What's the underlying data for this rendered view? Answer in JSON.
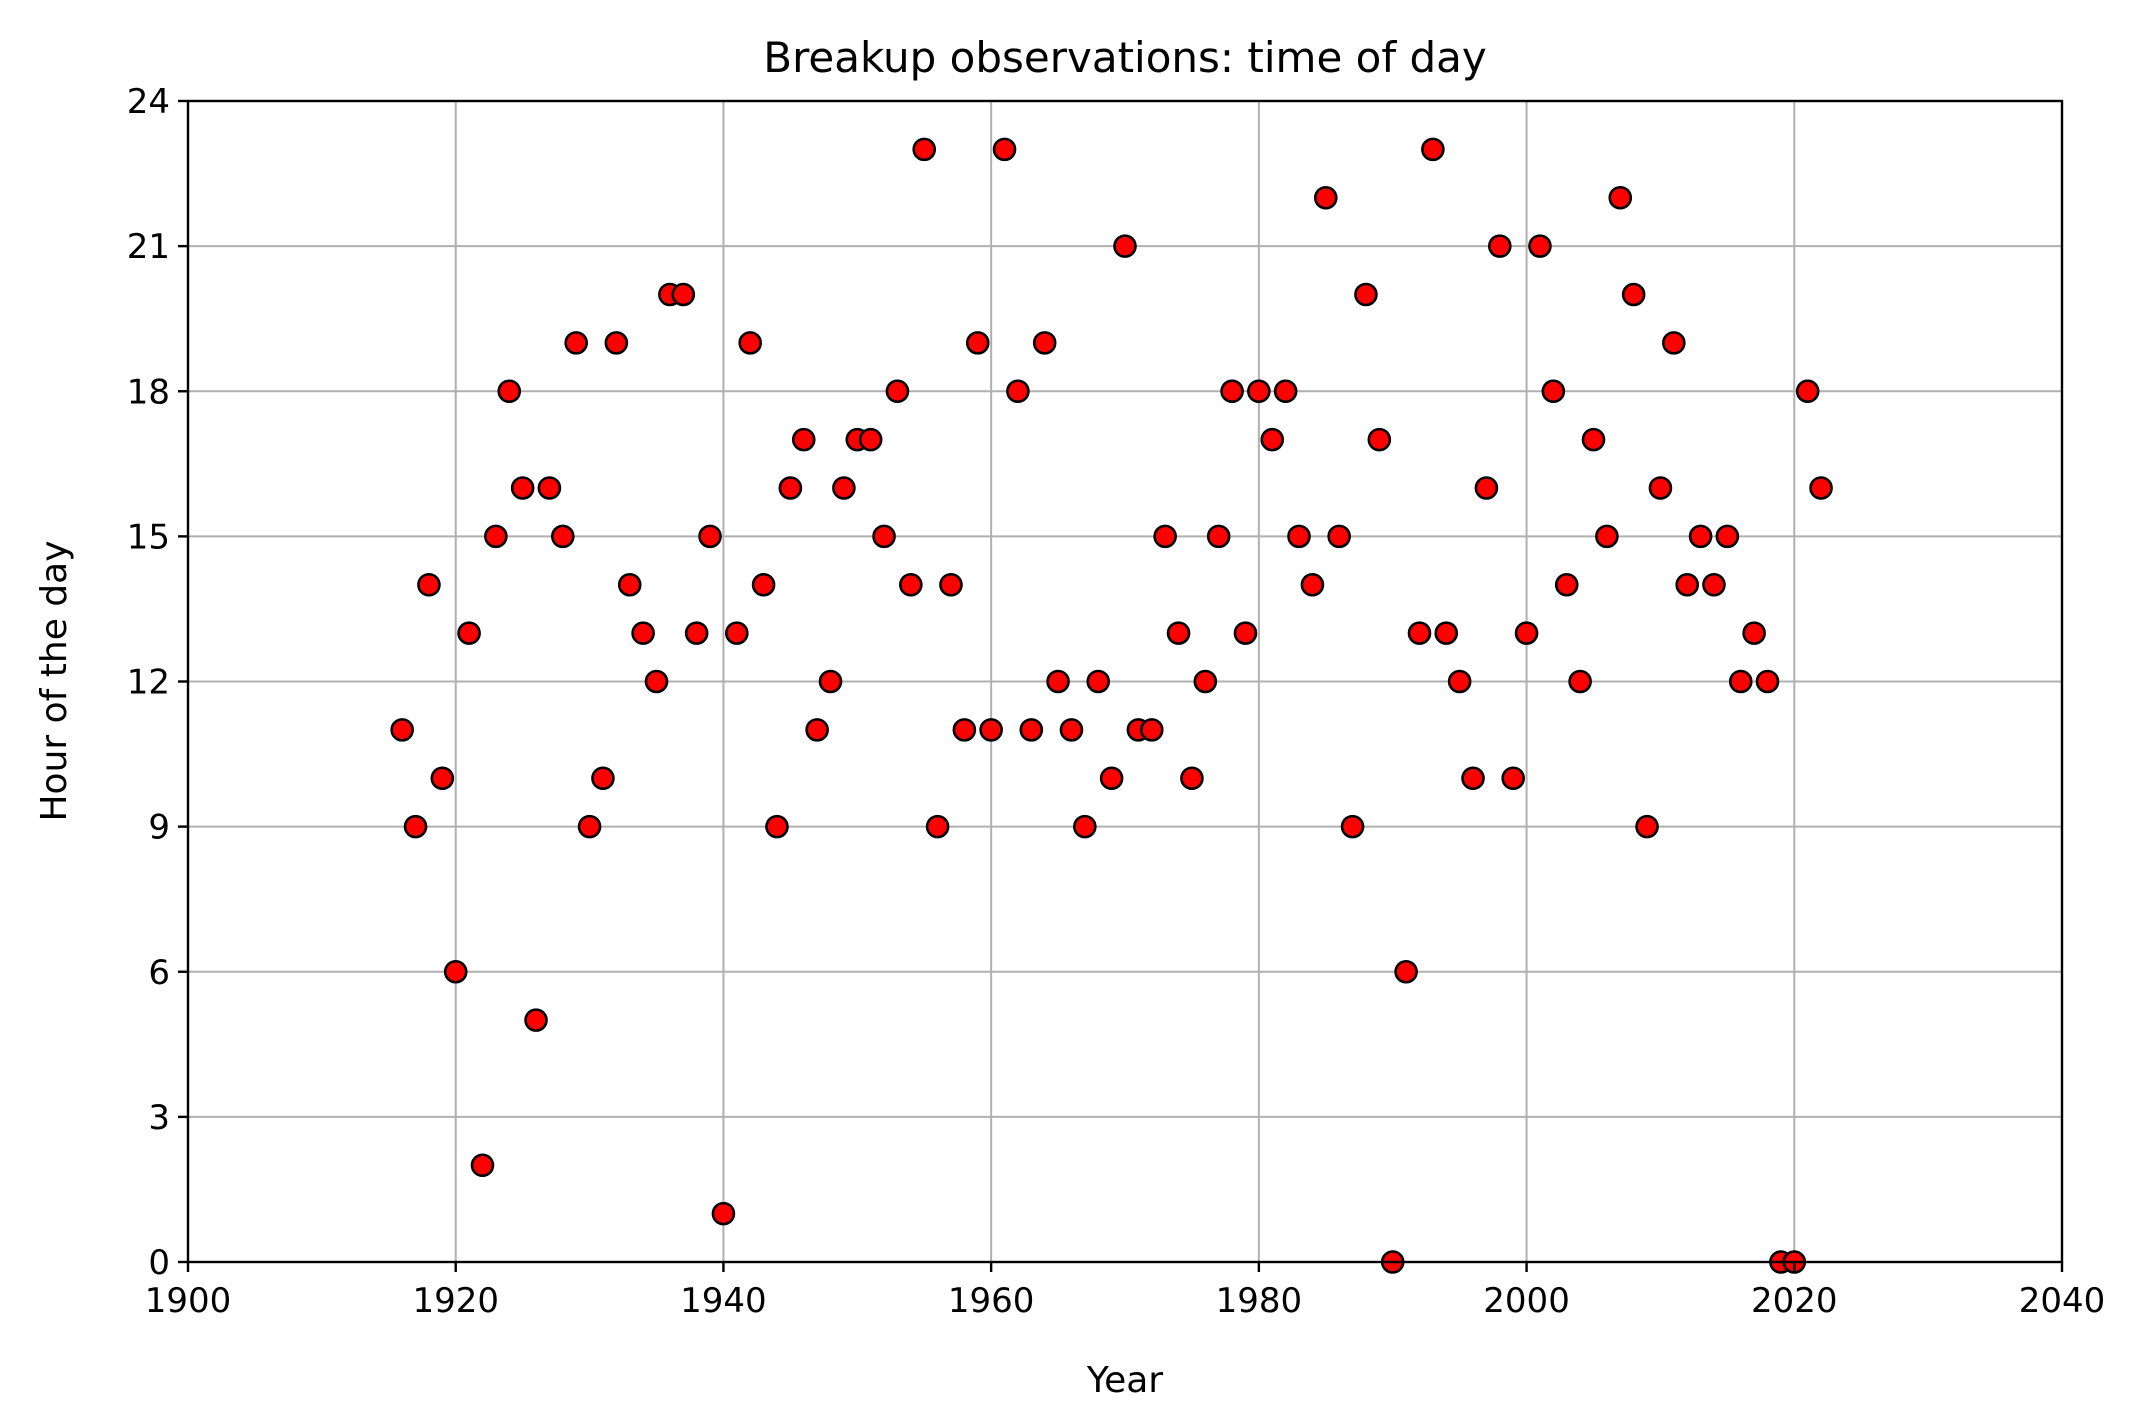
{
  "chart_data": {
    "type": "scatter",
    "title": "Breakup observations: time of day",
    "xlabel": "Year",
    "ylabel": "Hour of the day",
    "xlim": [
      1900,
      2040
    ],
    "ylim": [
      0,
      24
    ],
    "xticks": [
      1900,
      1920,
      1940,
      1960,
      1980,
      2000,
      2020,
      2040
    ],
    "yticks": [
      0,
      3,
      6,
      9,
      12,
      15,
      18,
      21,
      24
    ],
    "grid": true,
    "marker_color": "#ff0000",
    "marker_edge_color": "#000000",
    "points": [
      {
        "x": 1916,
        "y": 11
      },
      {
        "x": 1917,
        "y": 9
      },
      {
        "x": 1918,
        "y": 14
      },
      {
        "x": 1919,
        "y": 10
      },
      {
        "x": 1920,
        "y": 6
      },
      {
        "x": 1921,
        "y": 13
      },
      {
        "x": 1922,
        "y": 2
      },
      {
        "x": 1923,
        "y": 15
      },
      {
        "x": 1924,
        "y": 18
      },
      {
        "x": 1925,
        "y": 16
      },
      {
        "x": 1926,
        "y": 5
      },
      {
        "x": 1927,
        "y": 16
      },
      {
        "x": 1928,
        "y": 15
      },
      {
        "x": 1929,
        "y": 19
      },
      {
        "x": 1930,
        "y": 9
      },
      {
        "x": 1931,
        "y": 10
      },
      {
        "x": 1932,
        "y": 19
      },
      {
        "x": 1933,
        "y": 14
      },
      {
        "x": 1934,
        "y": 13
      },
      {
        "x": 1935,
        "y": 12
      },
      {
        "x": 1936,
        "y": 20
      },
      {
        "x": 1937,
        "y": 20
      },
      {
        "x": 1938,
        "y": 13
      },
      {
        "x": 1939,
        "y": 15
      },
      {
        "x": 1940,
        "y": 1
      },
      {
        "x": 1941,
        "y": 13
      },
      {
        "x": 1942,
        "y": 19
      },
      {
        "x": 1943,
        "y": 14
      },
      {
        "x": 1944,
        "y": 9
      },
      {
        "x": 1945,
        "y": 16
      },
      {
        "x": 1946,
        "y": 17
      },
      {
        "x": 1947,
        "y": 11
      },
      {
        "x": 1948,
        "y": 12
      },
      {
        "x": 1949,
        "y": 16
      },
      {
        "x": 1950,
        "y": 17
      },
      {
        "x": 1951,
        "y": 17
      },
      {
        "x": 1952,
        "y": 15
      },
      {
        "x": 1953,
        "y": 18
      },
      {
        "x": 1954,
        "y": 14
      },
      {
        "x": 1955,
        "y": 23
      },
      {
        "x": 1956,
        "y": 9
      },
      {
        "x": 1957,
        "y": 14
      },
      {
        "x": 1958,
        "y": 11
      },
      {
        "x": 1959,
        "y": 19
      },
      {
        "x": 1960,
        "y": 11
      },
      {
        "x": 1961,
        "y": 23
      },
      {
        "x": 1962,
        "y": 18
      },
      {
        "x": 1963,
        "y": 11
      },
      {
        "x": 1964,
        "y": 19
      },
      {
        "x": 1965,
        "y": 12
      },
      {
        "x": 1966,
        "y": 11
      },
      {
        "x": 1967,
        "y": 9
      },
      {
        "x": 1968,
        "y": 12
      },
      {
        "x": 1969,
        "y": 10
      },
      {
        "x": 1970,
        "y": 21
      },
      {
        "x": 1971,
        "y": 11
      },
      {
        "x": 1972,
        "y": 11
      },
      {
        "x": 1973,
        "y": 15
      },
      {
        "x": 1974,
        "y": 13
      },
      {
        "x": 1975,
        "y": 10
      },
      {
        "x": 1976,
        "y": 12
      },
      {
        "x": 1977,
        "y": 15
      },
      {
        "x": 1978,
        "y": 18
      },
      {
        "x": 1979,
        "y": 13
      },
      {
        "x": 1980,
        "y": 18
      },
      {
        "x": 1981,
        "y": 17
      },
      {
        "x": 1982,
        "y": 18
      },
      {
        "x": 1983,
        "y": 15
      },
      {
        "x": 1984,
        "y": 14
      },
      {
        "x": 1985,
        "y": 22
      },
      {
        "x": 1986,
        "y": 15
      },
      {
        "x": 1987,
        "y": 9
      },
      {
        "x": 1988,
        "y": 20
      },
      {
        "x": 1989,
        "y": 17
      },
      {
        "x": 1990,
        "y": 0
      },
      {
        "x": 1991,
        "y": 6
      },
      {
        "x": 1992,
        "y": 13
      },
      {
        "x": 1993,
        "y": 23
      },
      {
        "x": 1994,
        "y": 13
      },
      {
        "x": 1995,
        "y": 12
      },
      {
        "x": 1996,
        "y": 10
      },
      {
        "x": 1997,
        "y": 16
      },
      {
        "x": 1998,
        "y": 21
      },
      {
        "x": 1999,
        "y": 10
      },
      {
        "x": 2000,
        "y": 13
      },
      {
        "x": 2001,
        "y": 21
      },
      {
        "x": 2002,
        "y": 18
      },
      {
        "x": 2003,
        "y": 14
      },
      {
        "x": 2004,
        "y": 12
      },
      {
        "x": 2005,
        "y": 17
      },
      {
        "x": 2006,
        "y": 15
      },
      {
        "x": 2007,
        "y": 22
      },
      {
        "x": 2008,
        "y": 20
      },
      {
        "x": 2009,
        "y": 9
      },
      {
        "x": 2010,
        "y": 16
      },
      {
        "x": 2011,
        "y": 19
      },
      {
        "x": 2012,
        "y": 14
      },
      {
        "x": 2013,
        "y": 15
      },
      {
        "x": 2014,
        "y": 14
      },
      {
        "x": 2015,
        "y": 15
      },
      {
        "x": 2016,
        "y": 12
      },
      {
        "x": 2017,
        "y": 13
      },
      {
        "x": 2018,
        "y": 12
      },
      {
        "x": 2019,
        "y": 0
      },
      {
        "x": 2020,
        "y": 0
      },
      {
        "x": 2021,
        "y": 18
      },
      {
        "x": 2022,
        "y": 16
      }
    ]
  }
}
